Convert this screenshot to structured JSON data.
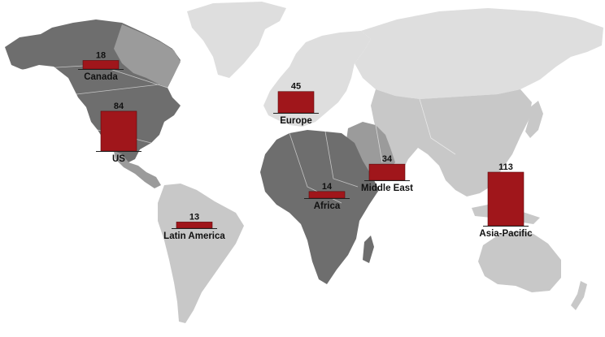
{
  "chart_data": {
    "type": "bar",
    "title": "",
    "colors": {
      "bar": "#a0161b",
      "land_dark": "#6e6e6e",
      "land_mid": "#9b9b9b",
      "land_light": "#c8c8c8",
      "land_pale": "#dedede"
    },
    "regions": [
      {
        "id": "canada",
        "name": "Canada",
        "value": 18
      },
      {
        "id": "us",
        "name": "US",
        "value": 84
      },
      {
        "id": "latin-america",
        "name": "Latin America",
        "value": 13
      },
      {
        "id": "europe",
        "name": "Europe",
        "value": 45
      },
      {
        "id": "africa",
        "name": "Africa",
        "value": 14
      },
      {
        "id": "middle-east",
        "name": "Middle East",
        "value": 34
      },
      {
        "id": "asia-pacific",
        "name": "Asia-Pacific",
        "value": 113
      }
    ]
  }
}
